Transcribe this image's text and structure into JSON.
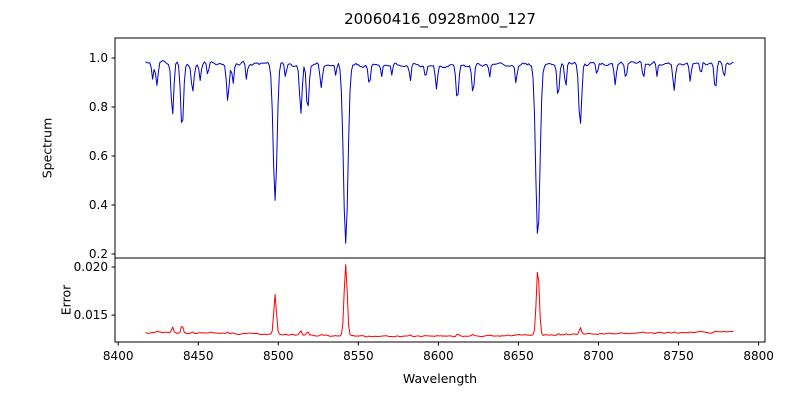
{
  "chart_data": {
    "type": "line",
    "title": "20060416_0928m00_127",
    "xlabel": "Wavelength",
    "xlim": [
      8398,
      8804
    ],
    "xticks": {
      "values": [
        8400,
        8450,
        8500,
        8550,
        8600,
        8650,
        8700,
        8750,
        8800
      ],
      "labels": [
        "8400",
        "8450",
        "8500",
        "8550",
        "8600",
        "8650",
        "8700",
        "8750",
        "8800"
      ]
    },
    "panels": [
      {
        "id": "spectrum",
        "ylabel": "Spectrum",
        "color": "#0000cd",
        "ylim": [
          0.1837,
          1.0816
        ],
        "yticks": {
          "values": [
            0.2,
            0.4,
            0.6,
            0.8,
            1.0
          ],
          "labels": [
            "0.2",
            "0.4",
            "0.6",
            "0.8",
            "1.0"
          ]
        }
      },
      {
        "id": "error",
        "ylabel": "Error",
        "color": "#ff0000",
        "ylim": [
          0.0122,
          0.02094
        ],
        "yticks": {
          "values": [
            0.015,
            0.02
          ],
          "labels": [
            "0.015",
            "0.020"
          ]
        }
      }
    ],
    "notable_minima": [
      {
        "x": 8498,
        "y": 0.41
      },
      {
        "x": 8542,
        "y": 0.24
      },
      {
        "x": 8662,
        "y": 0.27
      }
    ],
    "error_peaks": [
      {
        "x": 8498,
        "y": 0.0168
      },
      {
        "x": 8542,
        "y": 0.0205
      },
      {
        "x": 8662,
        "y": 0.0204
      }
    ],
    "model": {
      "x_start": 8417,
      "x_end": 8785,
      "x_step": 0.9,
      "continuum": 0.975,
      "continuum_wave": {
        "amp": 0.004,
        "len": 60,
        "ref": 8400
      },
      "noise": {
        "amp": 0.013,
        "seed": 12345
      },
      "lines": [
        [
          8421.5,
          0.06,
          0.6
        ],
        [
          8424.2,
          0.1,
          0.7
        ],
        [
          8433.9,
          0.22,
          0.8
        ],
        [
          8439.9,
          0.26,
          0.9
        ],
        [
          8446.5,
          0.12,
          0.8
        ],
        [
          8451.2,
          0.07,
          0.6
        ],
        [
          8456.0,
          0.05,
          0.5
        ],
        [
          8468.4,
          0.15,
          0.8
        ],
        [
          8471.8,
          0.08,
          0.6
        ],
        [
          8480.1,
          0.06,
          0.5
        ],
        [
          8498.0,
          0.56,
          1.2
        ],
        [
          8504.5,
          0.05,
          0.5
        ],
        [
          8514.1,
          0.2,
          0.8
        ],
        [
          8518.3,
          0.19,
          0.8
        ],
        [
          8526.8,
          0.09,
          0.7
        ],
        [
          8536.0,
          0.05,
          0.5
        ],
        [
          8542.1,
          0.735,
          1.4
        ],
        [
          8556.9,
          0.08,
          0.7
        ],
        [
          8564.5,
          0.05,
          0.5
        ],
        [
          8571.0,
          0.05,
          0.5
        ],
        [
          8582.5,
          0.07,
          0.6
        ],
        [
          8592.0,
          0.05,
          0.5
        ],
        [
          8598.8,
          0.1,
          0.7
        ],
        [
          8611.8,
          0.15,
          0.8
        ],
        [
          8621.6,
          0.11,
          0.7
        ],
        [
          8632.0,
          0.05,
          0.5
        ],
        [
          8648.5,
          0.08,
          0.6
        ],
        [
          8662.1,
          0.705,
          1.35
        ],
        [
          8674.8,
          0.14,
          0.7
        ],
        [
          8679.5,
          0.1,
          0.6
        ],
        [
          8688.6,
          0.25,
          0.9
        ],
        [
          8699.0,
          0.05,
          0.5
        ],
        [
          8710.4,
          0.08,
          0.6
        ],
        [
          8717.1,
          0.06,
          0.6
        ],
        [
          8728.0,
          0.07,
          0.6
        ],
        [
          8736.5,
          0.06,
          0.5
        ],
        [
          8747.2,
          0.11,
          0.7
        ],
        [
          8757.3,
          0.08,
          0.6
        ],
        [
          8764.0,
          0.05,
          0.5
        ],
        [
          8773.0,
          0.11,
          0.7
        ],
        [
          8778.5,
          0.06,
          0.6
        ]
      ],
      "error": {
        "base": 0.013,
        "coef": 0.01476,
        "power": 2.2,
        "wave": {
          "amp": 0.0002,
          "len": 60,
          "ref": 8400
        },
        "noise": {
          "amp": 0.00013,
          "seed": 777
        }
      }
    }
  }
}
